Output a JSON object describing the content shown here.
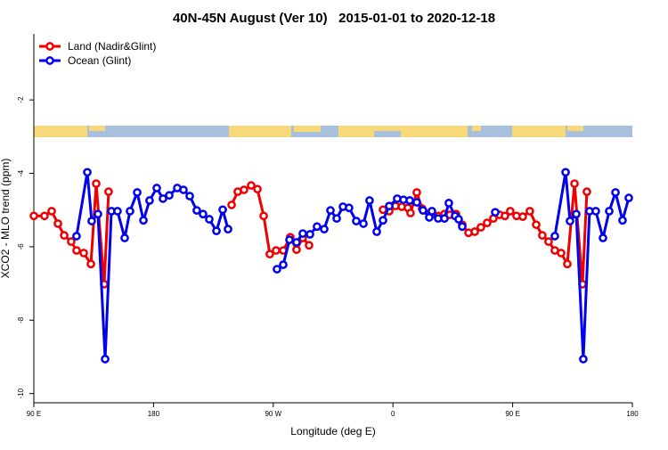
{
  "chart_data": {
    "type": "line",
    "title": "40N-45N August (Ver 10)   2015-01-01 to 2020-12-18",
    "x_label": "Longitude (deg E)",
    "y_label": "XCO2 - MLO trend (ppm)",
    "xlim": [
      90,
      540
    ],
    "ylim": [
      -10.25,
      -0.2
    ],
    "xticks": [
      {
        "value": 90,
        "label": "90 E"
      },
      180,
      {
        "value": 270,
        "label": "90 W"
      },
      {
        "value": 360,
        "label": "0"
      },
      {
        "value": 450,
        "label": "90 E"
      },
      {
        "value": 540,
        "label": "180"
      }
    ],
    "yticks": [
      -2,
      -4,
      -6,
      -8,
      -10
    ],
    "legend": "top-left",
    "series": [
      {
        "name": "Land (Nadir&Glint)",
        "color": "#ee0000",
        "x": [
          90,
          98.0,
          103.4,
          108.1,
          112.8,
          118.1,
          122.1,
          127.5,
          132.9,
          136.9,
          142.9,
          146.2,
          null,
          238.7,
          243.3,
          248.0,
          253.4,
          258.1,
          262.8,
          267.4,
          272.1,
          277.5,
          282.8,
          287.5,
          292.2,
          296.9,
          null,
          352.5,
          357.2,
          361.9,
          366.6,
          371.2,
          373.2,
          377.9,
          381.9,
          389.3,
          394.0,
          398.7,
          402.7,
          407.4,
          412.1,
          416.8,
          421.5,
          426.1,
          430.8,
          435.5,
          440.2,
          444.2,
          448.2,
          452.9,
          457.6,
          462.9,
          467.7,
          472.3,
          477.0,
          481.7,
          486.4,
          491.1,
          496.5,
          502.5,
          505.8
        ],
        "values": [
          -5.16,
          -5.16,
          -5.03,
          -5.37,
          -5.69,
          -5.86,
          -6.1,
          -6.17,
          -6.47,
          -4.28,
          -7.02,
          -4.5,
          null,
          -4.86,
          -4.5,
          -4.45,
          -4.33,
          -4.43,
          -5.16,
          -6.2,
          -6.1,
          -6.1,
          -5.74,
          -6.08,
          -5.76,
          -5.96,
          null,
          -4.99,
          -5.03,
          -4.89,
          -4.91,
          -4.94,
          -5.08,
          -4.52,
          -4.96,
          -5.11,
          -5.16,
          -5.11,
          -5.13,
          -5.11,
          -5.4,
          -5.62,
          -5.59,
          -5.47,
          -5.35,
          -5.23,
          -5.13,
          -5.16,
          -5.03,
          -5.16,
          -5.18,
          -5.03,
          -5.4,
          -5.69,
          -5.86,
          -6.1,
          -6.17,
          -6.47,
          -4.28,
          -7.02,
          -4.5
        ]
      },
      {
        "name": "Ocean (Glint)",
        "color": "#0000ee",
        "x": [
          122.1,
          130.2,
          133.5,
          138.2,
          143.6,
          148.3,
          152.9,
          158.3,
          162.3,
          167.7,
          172.4,
          177.0,
          182.4,
          187.1,
          191.8,
          197.8,
          202.5,
          207.2,
          212.5,
          217.2,
          221.9,
          227.3,
          232.0,
          236.0,
          null,
          272.8,
          277.5,
          282.2,
          287.5,
          292.2,
          297.6,
          302.9,
          308.3,
          313.0,
          317.7,
          322.4,
          327.0,
          332.4,
          337.8,
          342.4,
          347.8,
          352.5,
          357.2,
          363.2,
          367.9,
          372.6,
          377.9,
          382.6,
          387.3,
          389.3,
          394.0,
          398.7,
          402.0,
          406.7,
          409.4,
          412.1,
          null,
          436.9,
          null,
          481.7,
          489.8,
          493.1,
          497.8,
          503.1,
          507.8,
          512.5,
          517.9,
          522.6,
          527.3,
          532.6,
          537.3
        ],
        "values": [
          -5.71,
          -3.97,
          -5.3,
          -5.11,
          -9.06,
          -5.03,
          -5.03,
          -5.76,
          -5.03,
          -4.52,
          -5.28,
          -4.74,
          -4.4,
          -4.69,
          -4.6,
          -4.4,
          -4.45,
          -4.62,
          -5.01,
          -5.11,
          -5.25,
          -5.57,
          -4.99,
          -5.52,
          null,
          -6.61,
          -6.49,
          -5.81,
          -5.88,
          -5.64,
          -5.66,
          -5.45,
          -5.52,
          -5.01,
          -5.23,
          -4.91,
          -4.94,
          -5.3,
          -5.37,
          -4.74,
          -5.59,
          -5.28,
          -4.89,
          -4.69,
          -4.72,
          -4.74,
          -4.79,
          -5.01,
          -5.2,
          -5.03,
          -5.23,
          -5.23,
          -4.81,
          -5.16,
          -5.25,
          -5.45,
          null,
          -5.06,
          null,
          -5.71,
          -3.97,
          -5.3,
          -5.11,
          -9.06,
          -5.03,
          -5.03,
          -5.76,
          -5.03,
          -4.52,
          -5.28,
          -4.67
        ]
      }
    ]
  }
}
